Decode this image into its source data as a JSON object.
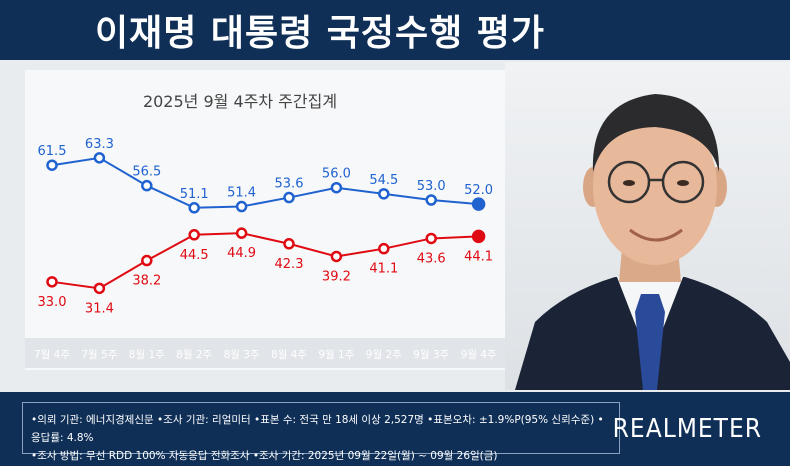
{
  "header": {
    "title": "이재명 대통령 국정수행 평가"
  },
  "chart_data": {
    "type": "line",
    "title": "",
    "subtitle": "2025년 9월 4주차 주간집계",
    "categories": [
      "7월 4주",
      "7월 5주",
      "8월 1주",
      "8월 2주",
      "8월 3주",
      "8월 4주",
      "9월 1주",
      "9월 2주",
      "9월 3주",
      "9월 4주"
    ],
    "series": [
      {
        "values": [
          61.5,
          63.3,
          56.5,
          51.1,
          51.4,
          53.6,
          56.0,
          54.5,
          53.0,
          52.0
        ],
        "color": "#1f62d0"
      },
      {
        "values": [
          33.0,
          31.4,
          38.2,
          44.5,
          44.9,
          42.3,
          39.2,
          41.1,
          43.6,
          44.1
        ],
        "color": "#e00a12"
      }
    ],
    "ylim": [
      20,
      75
    ],
    "grid": false,
    "legend": "none"
  },
  "footer": {
    "line1": "•의뢰 기관: 에너지경제신문  •조사 기관: 리얼미터  •표본 수: 전국 만 18세 이상 2,527명  •표본오차: ±1.9%P(95% 신뢰수준)  •응답률: 4.8%",
    "line2": "•조사 방법: 무선 RDD 100% 자동응답 전화조사  •조사 기간: 2025년 09월 22일(월) ~ 09월 26일(금)",
    "logo": "REALMETER"
  }
}
